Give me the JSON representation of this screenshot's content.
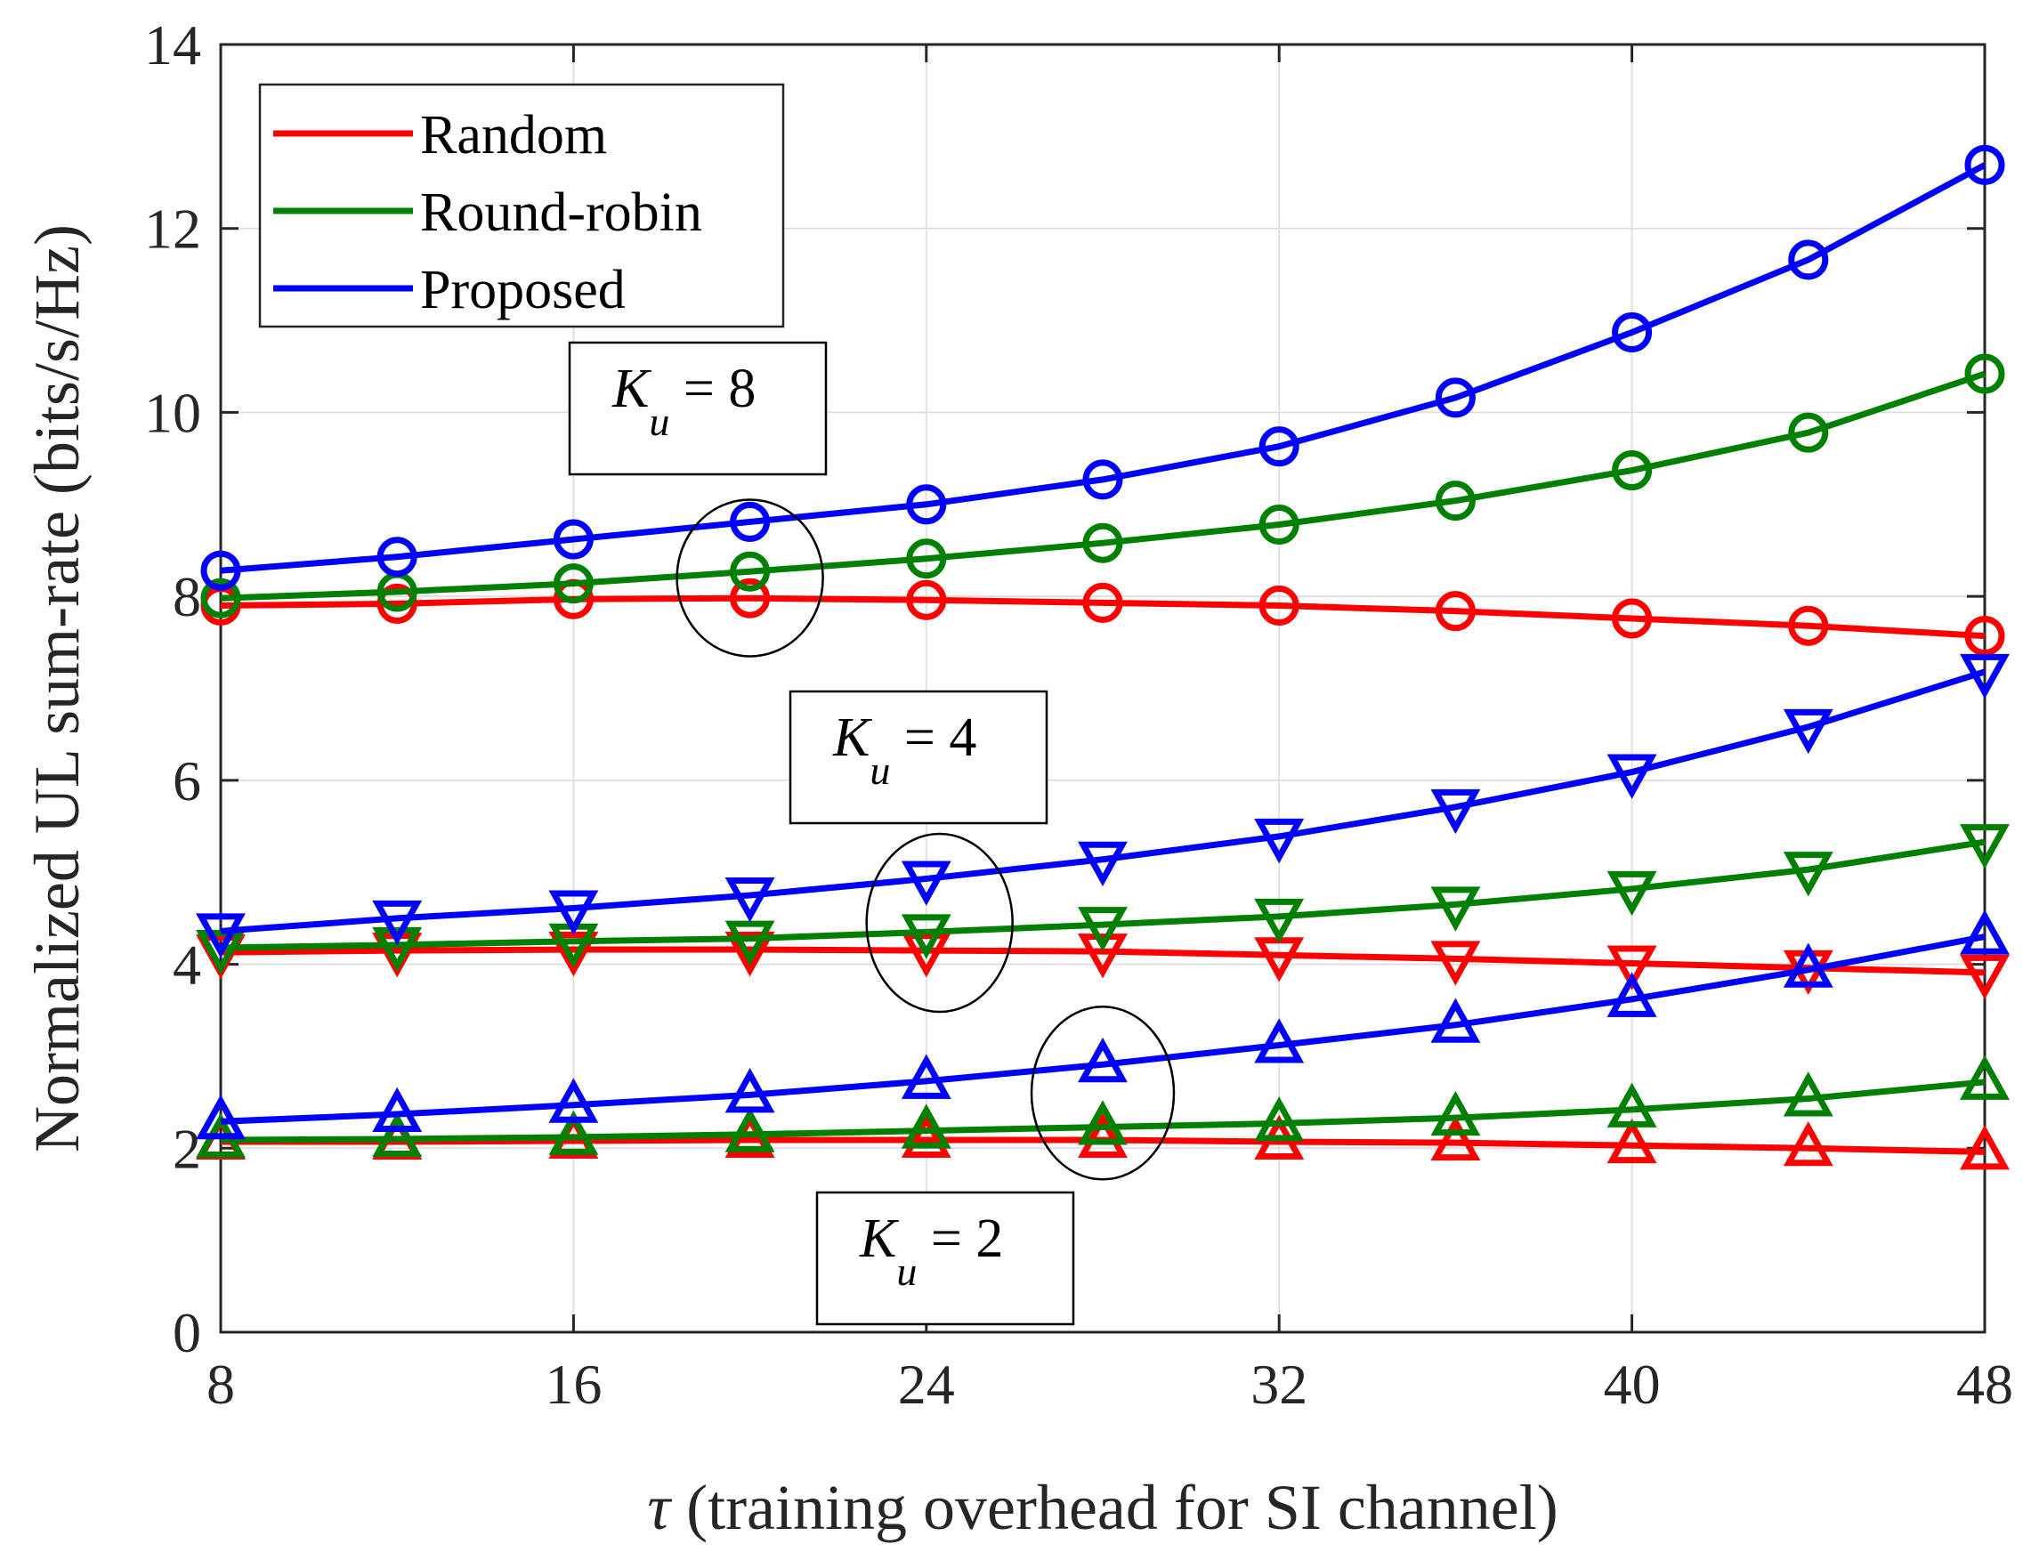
{
  "chart_data": {
    "type": "line",
    "xlabel_symbol": "τ",
    "xlabel": " (training overhead for SI channel)",
    "ylabel": "Normalized UL sum-rate (bits/s/Hz)",
    "xlim": [
      8,
      48
    ],
    "ylim": [
      0,
      14
    ],
    "xticks": [
      8,
      16,
      24,
      32,
      40,
      48
    ],
    "yticks": [
      0,
      2,
      4,
      6,
      8,
      10,
      12,
      14
    ],
    "grid": true,
    "legend_position": "top-left",
    "legend": [
      {
        "label": "Random",
        "color": "#ff0000"
      },
      {
        "label": "Round-robin",
        "color": "#008000"
      },
      {
        "label": "Proposed",
        "color": "#0000ff"
      }
    ],
    "x": [
      8,
      12,
      16,
      20,
      24,
      28,
      32,
      36,
      40,
      44,
      48
    ],
    "groups": [
      {
        "label_var": "K",
        "label_sub": "u",
        "label_rest": " = 8",
        "marker": "circle",
        "series": [
          {
            "name": "Random",
            "color": "#ff0000",
            "values": [
              7.9,
              7.92,
              7.97,
              7.98,
              7.96,
              7.93,
              7.9,
              7.84,
              7.76,
              7.68,
              7.57
            ]
          },
          {
            "name": "Round-robin",
            "color": "#008000",
            "values": [
              7.98,
              8.05,
              8.14,
              8.27,
              8.41,
              8.58,
              8.78,
              9.04,
              9.37,
              9.78,
              10.42
            ]
          },
          {
            "name": "Proposed",
            "color": "#0000ff",
            "values": [
              8.28,
              8.43,
              8.62,
              8.81,
              9.0,
              9.27,
              9.63,
              10.16,
              10.87,
              11.66,
              12.69
            ]
          }
        ]
      },
      {
        "label_var": "K",
        "label_sub": "u",
        "label_rest": " = 4",
        "marker": "triangle-down",
        "series": [
          {
            "name": "Random",
            "color": "#ff0000",
            "values": [
              4.13,
              4.15,
              4.16,
              4.16,
              4.15,
              4.14,
              4.1,
              4.06,
              4.01,
              3.96,
              3.91
            ]
          },
          {
            "name": "Round-robin",
            "color": "#008000",
            "values": [
              4.18,
              4.21,
              4.25,
              4.28,
              4.35,
              4.43,
              4.52,
              4.65,
              4.82,
              5.03,
              5.33
            ]
          },
          {
            "name": "Proposed",
            "color": "#0000ff",
            "values": [
              4.36,
              4.5,
              4.61,
              4.75,
              4.93,
              5.14,
              5.39,
              5.71,
              6.09,
              6.58,
              7.18
            ]
          }
        ]
      },
      {
        "label_var": "K",
        "label_sub": "u",
        "label_rest": " = 2",
        "marker": "triangle-up",
        "series": [
          {
            "name": "Random",
            "color": "#ff0000",
            "values": [
              2.07,
              2.07,
              2.08,
              2.09,
              2.09,
              2.09,
              2.07,
              2.06,
              2.03,
              2.0,
              1.96
            ]
          },
          {
            "name": "Round-robin",
            "color": "#008000",
            "values": [
              2.09,
              2.1,
              2.12,
              2.15,
              2.19,
              2.23,
              2.27,
              2.33,
              2.42,
              2.54,
              2.72
            ]
          },
          {
            "name": "Proposed",
            "color": "#0000ff",
            "values": [
              2.29,
              2.37,
              2.47,
              2.58,
              2.73,
              2.91,
              3.12,
              3.34,
              3.62,
              3.94,
              4.3
            ]
          }
        ]
      }
    ]
  }
}
